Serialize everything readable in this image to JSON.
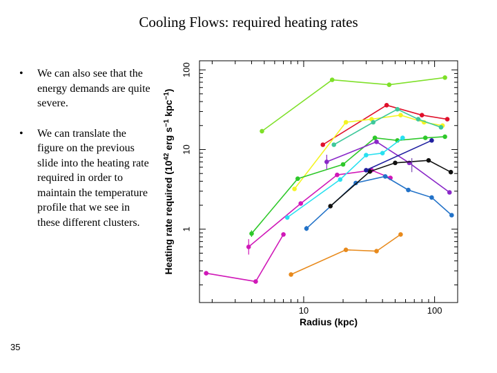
{
  "slide": {
    "title": "Cooling Flows: required heating rates",
    "bullets": [
      "We can also see that the energy demands are quite severe.",
      "We can translate the figure on the previous slide into the heating rate required in order to maintain the temperature profile that we see in these different clusters."
    ],
    "bullet_marker": "•",
    "slide_number": "35"
  },
  "chart_data": {
    "type": "line",
    "title": "",
    "xlabel": "Radius (kpc)",
    "ylabel": "Heating rate required (10^42 erg s^-1 kpc^-1)",
    "ylabel_parts": {
      "main": "Heating rate required (10",
      "exp1": "42",
      "mid": " erg s",
      "exp2": "−1",
      "mid2": " kpc",
      "exp3": "−1",
      "end": ")"
    },
    "xscale": "log",
    "yscale": "log",
    "xlim": [
      1.6,
      150
    ],
    "ylim": [
      0.12,
      130
    ],
    "xticks": [
      10,
      100
    ],
    "xtick_labels": [
      "10",
      "100"
    ],
    "yticks": [
      1,
      10,
      100
    ],
    "ytick_labels": [
      "1",
      "10",
      "100"
    ],
    "series": [
      {
        "name": "light-green",
        "color": "#7ee028",
        "x": [
          4.8,
          16.5,
          45,
          120
        ],
        "y": [
          17,
          75,
          65,
          80
        ]
      },
      {
        "name": "red",
        "color": "#e0102a",
        "x": [
          14,
          43,
          80,
          125
        ],
        "y": [
          11.5,
          36,
          27,
          24
        ]
      },
      {
        "name": "yellow",
        "color": "#f4f422",
        "x": [
          8.5,
          21,
          33,
          55,
          83,
          115
        ],
        "y": [
          3.2,
          22,
          24,
          27,
          22,
          20
        ]
      },
      {
        "name": "teal-green",
        "color": "#3ec89a",
        "x": [
          17,
          34,
          52,
          75,
          112
        ],
        "y": [
          11.5,
          22,
          32,
          24,
          19
        ]
      },
      {
        "name": "green",
        "color": "#2ec82a",
        "x": [
          4,
          9,
          20,
          35,
          52,
          85,
          120
        ],
        "y": [
          0.88,
          4.3,
          6.5,
          14,
          13,
          14,
          14.5
        ]
      },
      {
        "name": "purple",
        "color": "#8a28c8",
        "x": [
          15,
          36,
          64,
          130
        ],
        "y": [
          7,
          12.5,
          6.8,
          2.9
        ]
      },
      {
        "name": "magenta",
        "color": "#d018b8",
        "x": [
          1.8,
          4.3,
          7
        ],
        "y": [
          0.28,
          0.22,
          0.86
        ]
      },
      {
        "name": "magenta-2",
        "color": "#d018b8",
        "x": [
          3.8,
          9.5,
          18,
          33,
          46
        ],
        "y": [
          0.6,
          2.1,
          4.8,
          5.5,
          4.4
        ]
      },
      {
        "name": "cyan",
        "color": "#28e0f0",
        "x": [
          7.5,
          19,
          30,
          40,
          57
        ],
        "y": [
          1.4,
          4.2,
          8.5,
          9,
          14
        ]
      },
      {
        "name": "blue",
        "color": "#2272c8",
        "x": [
          10.5,
          25,
          42,
          63,
          95,
          135
        ],
        "y": [
          1.02,
          3.8,
          4.6,
          3.1,
          2.5,
          1.5
        ]
      },
      {
        "name": "black",
        "color": "#101010",
        "x": [
          16,
          32,
          50,
          90,
          133
        ],
        "y": [
          1.95,
          5.3,
          6.8,
          7.3,
          5.2
        ]
      },
      {
        "name": "navy",
        "color": "#2020a0",
        "x": [
          30,
          95
        ],
        "y": [
          5.5,
          13
        ]
      },
      {
        "name": "orange",
        "color": "#e88a1c",
        "x": [
          8,
          21,
          36,
          55
        ],
        "y": [
          0.27,
          0.55,
          0.53,
          0.86
        ]
      }
    ],
    "error_bars": [
      {
        "color": "#d018b8",
        "x": 3.8,
        "y_low": 0.48,
        "y_high": 0.75
      },
      {
        "color": "#8a28c8",
        "x": 15,
        "y_low": 5.6,
        "y_high": 8.6
      },
      {
        "color": "#2ec82a",
        "x": 4,
        "y_low": 0.8,
        "y_high": 0.97
      },
      {
        "color": "#7a4ab0",
        "x": 67,
        "y_low": 5.2,
        "y_high": 7.8
      },
      {
        "color": "#2272c8",
        "x": 10.5,
        "y_low": 0.95,
        "y_high": 1.1
      }
    ],
    "grid": false,
    "legend": "none"
  }
}
